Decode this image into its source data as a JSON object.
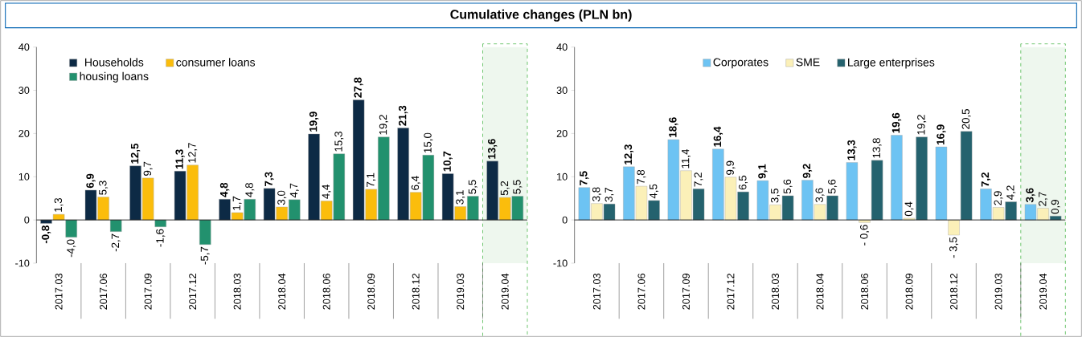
{
  "chart_data": [
    {
      "type": "bar",
      "title": "Cumulative changes (PLN bn)",
      "categories": [
        "2017.03",
        "2017.06",
        "2017.09",
        "2017.12",
        "2018.03",
        "2018.04",
        "2018.06",
        "2018.09",
        "2018.12",
        "2019.03",
        "2019.04"
      ],
      "series": [
        {
          "name": "Households",
          "color": "#0d2a45",
          "values": [
            -0.8,
            6.9,
            12.5,
            11.3,
            4.8,
            7.3,
            19.9,
            27.8,
            21.3,
            10.7,
            13.6
          ],
          "value_labels": [
            "-0,8",
            "6,9",
            "12,5",
            "11,3",
            "4,8",
            "7,3",
            "19,9",
            "27,8",
            "21,3",
            "10,7",
            "13,6"
          ]
        },
        {
          "name": "consumer loans",
          "color": "#fbbd0c",
          "values": [
            1.3,
            5.3,
            9.7,
            12.7,
            1.7,
            3.0,
            4.4,
            7.1,
            6.4,
            3.1,
            5.2
          ],
          "value_labels": [
            "1,3",
            "5,3",
            "9,7",
            "12,7",
            "1,7",
            "3,0",
            "4,4",
            "7,1",
            "6,4",
            "3,1",
            "5,2"
          ]
        },
        {
          "name": "housing loans",
          "color": "#22916e",
          "values": [
            -4.0,
            -2.7,
            -1.6,
            -5.7,
            4.8,
            4.7,
            15.3,
            19.2,
            15.0,
            5.5,
            5.5
          ],
          "value_labels": [
            "-4,0",
            "-2,7",
            "-1,6",
            "-5,7",
            "4,8",
            "4,7",
            "15,3",
            "19,2",
            "15,0",
            "5,5",
            "5,5"
          ]
        }
      ],
      "ylim": [
        -10,
        40
      ],
      "yticks": [
        -10,
        0,
        10,
        20,
        30,
        40
      ],
      "legend": "top left",
      "bands": [
        {
          "axis": "x",
          "from": "2019.04",
          "to": "2019.04",
          "color": "#eef7ee"
        }
      ]
    },
    {
      "type": "bar",
      "categories": [
        "2017.03",
        "2017.06",
        "2017.09",
        "2017.12",
        "2018.03",
        "2018.04",
        "2018.06",
        "2018.09",
        "2018.12",
        "2019.03",
        "2019.04"
      ],
      "series": [
        {
          "name": "Corporates",
          "color": "#6dc3f3",
          "values": [
            7.5,
            12.3,
            18.6,
            16.4,
            9.1,
            9.2,
            13.3,
            19.6,
            16.9,
            7.2,
            3.6
          ],
          "value_labels": [
            "7,5",
            "12,3",
            "18,6",
            "16,4",
            "9,1",
            "9,2",
            "13,3",
            "19,6",
            "16,9",
            "7,2",
            "3,6"
          ]
        },
        {
          "name": "SME",
          "color": "#fbf0b8",
          "values": [
            3.8,
            7.8,
            11.4,
            9.9,
            3.5,
            3.6,
            -0.6,
            0.4,
            -3.5,
            2.9,
            2.7
          ],
          "value_labels": [
            "3,8",
            "7,8",
            "11,4",
            "9,9",
            "3,5",
            "3,6",
            "- 0,6",
            "0,4",
            "- 3,5",
            "2,9",
            "2,7"
          ]
        },
        {
          "name": "Large enterprises",
          "color": "#24626e",
          "values": [
            3.7,
            4.5,
            7.2,
            6.5,
            5.6,
            5.6,
            13.8,
            19.2,
            20.5,
            4.2,
            0.9
          ],
          "value_labels": [
            "3,7",
            "4,5",
            "7,2",
            "6,5",
            "5,6",
            "5,6",
            "13,8",
            "19,2",
            "20,5",
            "4,2",
            "0,9"
          ]
        }
      ],
      "ylim": [
        -10,
        40
      ],
      "yticks": [
        -10,
        0,
        10,
        20,
        30,
        40
      ],
      "legend": "top",
      "bands": [
        {
          "axis": "x",
          "from": "2019.04",
          "to": "2019.04",
          "color": "#eef7ee"
        }
      ]
    }
  ]
}
